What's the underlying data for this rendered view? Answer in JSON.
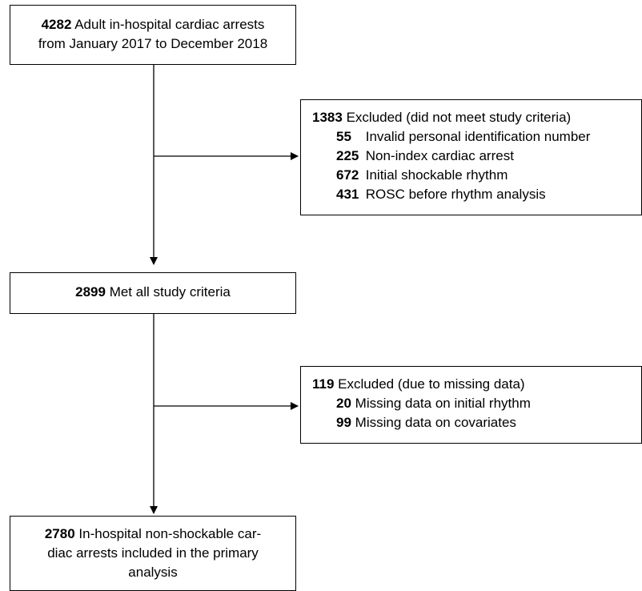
{
  "start": {
    "num": "4282",
    "line1": "Adult in-hospital cardiac arrests",
    "line2": "from January 2017 to December 2018"
  },
  "excluded1": {
    "num": "1383",
    "title": "Excluded (did not meet study criteria)",
    "items": [
      {
        "num": "55",
        "text": "Invalid personal identification number"
      },
      {
        "num": "225",
        "text": "Non-index cardiac arrest"
      },
      {
        "num": "672",
        "text": "Initial shockable rhythm"
      },
      {
        "num": "431",
        "text": "ROSC before rhythm analysis"
      }
    ]
  },
  "met": {
    "num": "2899",
    "text": "Met all study criteria"
  },
  "excluded2": {
    "num": "119",
    "title": "Excluded (due to missing data)",
    "items": [
      {
        "num": "20",
        "text": "Missing data on initial rhythm"
      },
      {
        "num": "99",
        "text": "Missing data on covariates"
      }
    ]
  },
  "final": {
    "num": "2780",
    "line1": "In-hospital non-shockable car-",
    "line2": "diac arrests included in the primary",
    "line3": "analysis"
  }
}
